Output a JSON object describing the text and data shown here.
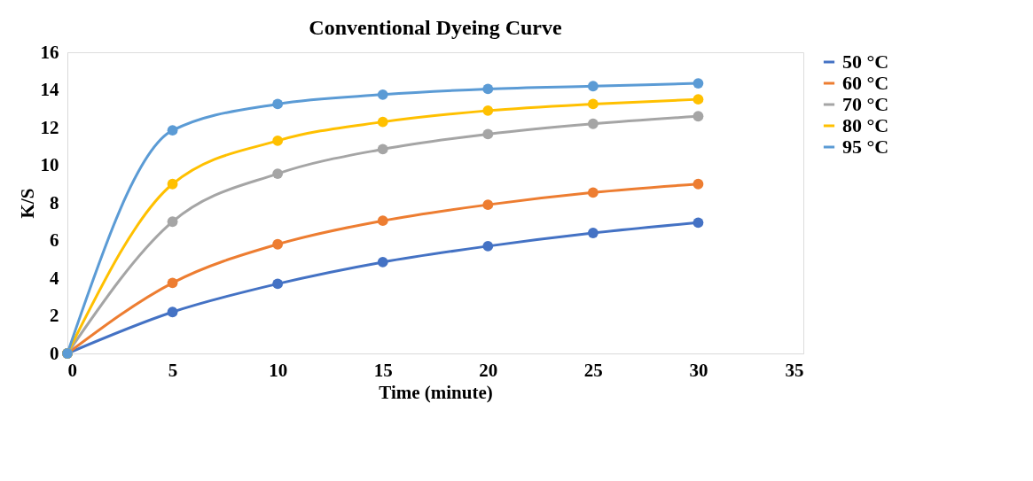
{
  "chart_data": {
    "type": "line",
    "title": "Conventional Dyeing Curve",
    "xlabel": "Time (minute)",
    "ylabel": "K/S",
    "x": [
      0,
      5,
      10,
      15,
      20,
      25,
      30
    ],
    "series": [
      {
        "name": "50 °C",
        "color": "#4472c4",
        "values": [
          0,
          2.2,
          3.7,
          4.85,
          5.7,
          6.4,
          6.95
        ]
      },
      {
        "name": "60 °C",
        "color": "#ed7d31",
        "values": [
          0,
          3.75,
          5.8,
          7.05,
          7.9,
          8.55,
          9.0
        ]
      },
      {
        "name": "70 °C",
        "color": "#a5a5a5",
        "values": [
          0,
          7.0,
          9.55,
          10.85,
          11.65,
          12.2,
          12.6
        ]
      },
      {
        "name": "80 °C",
        "color": "#ffc000",
        "values": [
          0,
          9.0,
          11.3,
          12.3,
          12.9,
          13.25,
          13.5
        ]
      },
      {
        "name": "95 °C",
        "color": "#5b9bd5",
        "values": [
          0,
          11.85,
          13.25,
          13.75,
          14.05,
          14.2,
          14.35
        ]
      }
    ],
    "xlim": [
      0,
      35
    ],
    "xticks": [
      0,
      5,
      10,
      15,
      20,
      25,
      30,
      35
    ],
    "ylim": [
      0,
      16
    ],
    "yticks": [
      0,
      2,
      4,
      6,
      8,
      10,
      12,
      14,
      16
    ],
    "grid": false,
    "legend": "right",
    "marker": "circle",
    "line_style": "solid"
  }
}
